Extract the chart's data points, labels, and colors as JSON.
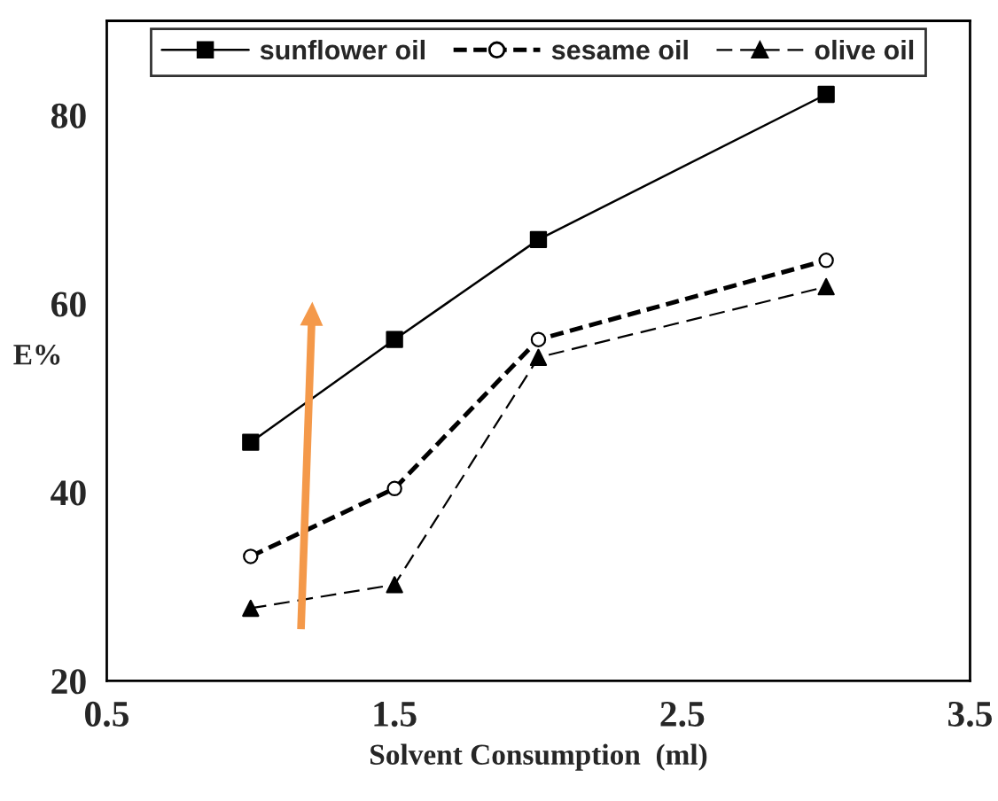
{
  "chart_data": {
    "type": "line",
    "xlabel": "Solvent Consumption  (ml)",
    "ylabel": "E%",
    "x": [
      1.0,
      1.5,
      2.0,
      3.0
    ],
    "series": [
      {
        "name": "sunflower oil",
        "color": "#000000",
        "values": [
          45.3,
          56.2,
          66.8,
          82.2
        ],
        "marker": "square",
        "line_style": "solid"
      },
      {
        "name": "sesame oil",
        "color": "#000000",
        "values": [
          33.2,
          40.4,
          56.2,
          64.6
        ],
        "marker": "circle",
        "line_style": "dashed"
      },
      {
        "name": "olive oil",
        "color": "#000000",
        "values": [
          27.7,
          30.2,
          54.3,
          61.8
        ],
        "marker": "triangle",
        "line_style": "dashed"
      }
    ],
    "xlim": [
      0.5,
      3.5
    ],
    "xticks": [
      0.5,
      1.5,
      2.5,
      3.5
    ],
    "ylim": [
      20,
      90
    ],
    "yticks": [
      20,
      40,
      60,
      80
    ],
    "grid": false,
    "legend": "top"
  }
}
